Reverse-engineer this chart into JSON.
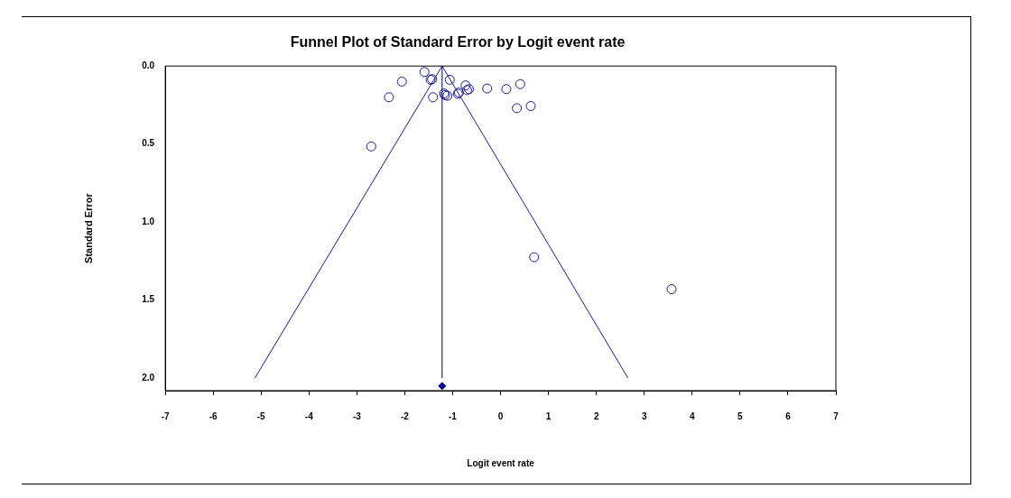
{
  "chart_data": {
    "type": "scatter",
    "title": "Funnel Plot of Standard Error by Logit event rate",
    "xlabel": "Logit event rate",
    "ylabel": "Standard Error",
    "xlim": [
      -7,
      7
    ],
    "xticks": [
      -7,
      -6,
      -5,
      -4,
      -3,
      -2,
      -1,
      0,
      1,
      2,
      3,
      4,
      5,
      6,
      7
    ],
    "ylim": [
      2.08,
      0
    ],
    "yticks": [
      {
        "value": 0,
        "label": "0.0"
      },
      {
        "value": 0.5,
        "label": "0.5"
      },
      {
        "value": 1,
        "label": "1.0"
      },
      {
        "value": 1.5,
        "label": "1.5"
      },
      {
        "value": 2,
        "label": "2.0"
      }
    ],
    "grid": false,
    "legend": false,
    "ref_lines": [
      {
        "axis": "x",
        "value": -1.22,
        "color": "#00006e"
      }
    ],
    "series": [
      {
        "type": "scatter",
        "marker": "circle",
        "color": "#1c1c8a",
        "x": [
          -1.59,
          -1.46,
          -1.43,
          -2.06,
          -2.33,
          -1.41,
          -1.06,
          -1.18,
          -1.11,
          -1.16,
          -0.89,
          -0.87,
          -0.73,
          -0.66,
          -0.7,
          -0.28,
          0.12,
          0.41,
          0.34,
          0.63,
          -2.7,
          0.7,
          3.57
        ],
        "values": [
          0.038,
          0.088,
          0.084,
          0.1,
          0.2,
          0.2,
          0.088,
          0.176,
          0.19,
          0.186,
          0.178,
          0.17,
          0.124,
          0.148,
          0.154,
          0.144,
          0.148,
          0.116,
          0.27,
          0.256,
          0.515,
          1.225,
          1.43
        ]
      },
      {
        "type": "line",
        "marker": "none",
        "color": "#1c1c8a",
        "x": [
          -1.22,
          -5.13
        ],
        "values": [
          0,
          2
        ]
      },
      {
        "type": "line",
        "marker": "none",
        "color": "#1c1c8a",
        "x": [
          -1.22,
          2.66
        ],
        "values": [
          0,
          2
        ]
      },
      {
        "type": "scatter",
        "marker": "diamond",
        "color": "#00008b",
        "x": [
          -1.22
        ],
        "values": [
          2.05
        ]
      }
    ]
  }
}
